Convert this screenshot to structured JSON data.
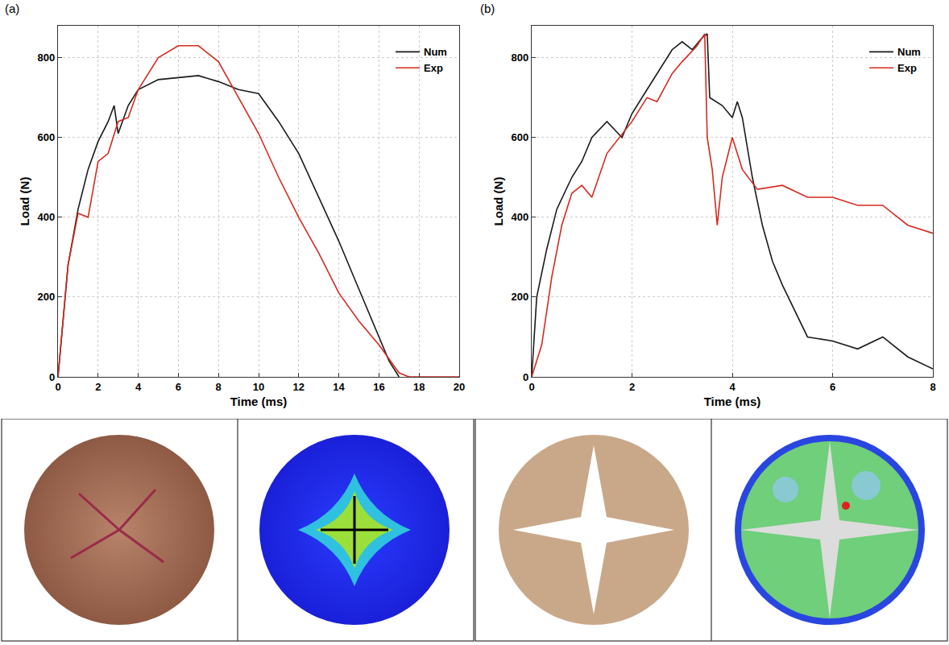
{
  "chart_data": [
    {
      "panel_label": "(a)",
      "type": "line",
      "x_label": "Time (ms)",
      "y_label": "Load (N)",
      "xlim": [
        0,
        20
      ],
      "xticks": [
        0,
        2,
        4,
        6,
        8,
        10,
        12,
        14,
        16,
        18,
        20
      ],
      "ylim": [
        0,
        880
      ],
      "yticks": [
        0,
        200,
        400,
        600,
        800
      ],
      "grid": true,
      "legend": "top right",
      "series": [
        {
          "name": "Num",
          "color": "#1a1a1a",
          "x": [
            0,
            0.5,
            1,
            1.5,
            2,
            2.5,
            2.8,
            3,
            3.5,
            4,
            5,
            6,
            7,
            8,
            9,
            10,
            11,
            12,
            13,
            14,
            15,
            16,
            16.5,
            17
          ],
          "values": [
            0,
            280,
            420,
            520,
            590,
            640,
            680,
            610,
            680,
            720,
            745,
            750,
            755,
            740,
            720,
            710,
            640,
            560,
            450,
            340,
            220,
            100,
            40,
            0
          ]
        },
        {
          "name": "Exp",
          "color": "#d62a1e",
          "x": [
            0,
            0.5,
            1,
            1.5,
            2,
            2.5,
            3,
            3.5,
            4,
            5,
            6,
            7,
            8,
            9,
            10,
            11,
            12,
            13,
            14,
            15,
            16,
            17,
            17.5,
            18,
            20
          ],
          "values": [
            0,
            280,
            410,
            400,
            540,
            560,
            640,
            650,
            720,
            800,
            830,
            830,
            790,
            700,
            610,
            500,
            400,
            310,
            210,
            140,
            80,
            10,
            0,
            0,
            0
          ]
        }
      ]
    },
    {
      "panel_label": "(b)",
      "type": "line",
      "x_label": "Time (ms)",
      "y_label": "Load (N)",
      "xlim": [
        0,
        8
      ],
      "xticks": [
        0,
        2,
        4,
        6,
        8
      ],
      "ylim": [
        0,
        880
      ],
      "yticks": [
        0,
        200,
        400,
        600,
        800
      ],
      "grid": true,
      "legend": "top right",
      "series": [
        {
          "name": "Num",
          "color": "#1a1a1a",
          "x": [
            0,
            0.1,
            0.3,
            0.5,
            0.8,
            1,
            1.2,
            1.5,
            1.8,
            2,
            2.3,
            2.5,
            2.8,
            3,
            3.2,
            3.4,
            3.5,
            3.55,
            3.8,
            4,
            4.1,
            4.2,
            4.4,
            4.6,
            4.8,
            5,
            5.3,
            5.5,
            6,
            6.5,
            7,
            7.5,
            8
          ],
          "values": [
            0,
            200,
            320,
            420,
            500,
            540,
            600,
            640,
            600,
            660,
            720,
            760,
            820,
            840,
            820,
            850,
            860,
            700,
            680,
            650,
            690,
            650,
            500,
            380,
            290,
            230,
            150,
            100,
            90,
            70,
            100,
            50,
            20
          ]
        },
        {
          "name": "Exp",
          "color": "#d62a1e",
          "x": [
            0,
            0.2,
            0.4,
            0.6,
            0.8,
            1,
            1.2,
            1.5,
            2,
            2.3,
            2.5,
            2.8,
            3,
            3.3,
            3.45,
            3.5,
            3.6,
            3.7,
            3.8,
            4,
            4.2,
            4.5,
            5,
            5.5,
            6,
            6.5,
            7,
            7.5,
            8
          ],
          "values": [
            0,
            80,
            250,
            380,
            460,
            480,
            450,
            560,
            640,
            700,
            690,
            760,
            790,
            830,
            860,
            600,
            520,
            380,
            500,
            600,
            520,
            470,
            480,
            450,
            450,
            430,
            430,
            380,
            360
          ]
        }
      ]
    }
  ]
}
